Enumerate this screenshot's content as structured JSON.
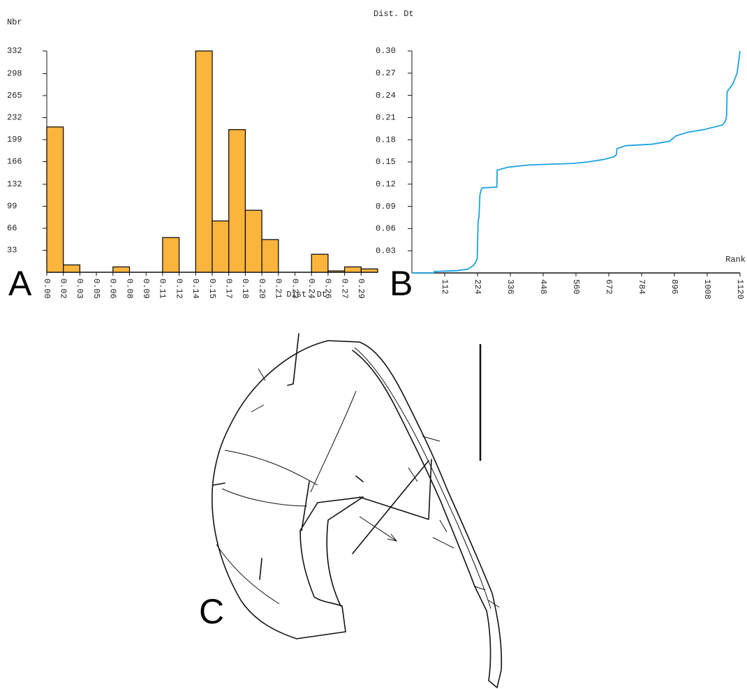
{
  "chart_data": [
    {
      "type": "histogram",
      "panel_label": "A",
      "y_label": "Nbr",
      "x_label": "Dist. Dt",
      "bins": [
        0,
        0.015,
        0.03,
        0.045,
        0.06,
        0.075,
        0.09,
        0.105,
        0.12,
        0.135,
        0.15,
        0.165,
        0.18,
        0.195,
        0.21,
        0.225,
        0.24,
        0.255,
        0.27,
        0.285,
        0.3
      ],
      "values": [
        218,
        11,
        0,
        0,
        8,
        0,
        0,
        52,
        0,
        332,
        77,
        214,
        93,
        49,
        0,
        0,
        27,
        2,
        8,
        5
      ],
      "color": "#fbb43c",
      "xlim": [
        0,
        0.3
      ],
      "ylim": [
        0,
        332
      ],
      "yticks": [
        33,
        66,
        99,
        132,
        166,
        199,
        232,
        265,
        298,
        332
      ],
      "xticks": [
        {
          "value": 0,
          "label": "0.00"
        },
        {
          "value": 0.015,
          "label": "0.02"
        },
        0.03,
        {
          "value": 0.045,
          "label": "0.05"
        },
        0.06,
        {
          "value": 0.075,
          "label": "0.08"
        },
        0.09,
        {
          "value": 0.105,
          "label": "0.11"
        },
        0.12,
        {
          "value": 0.135,
          "label": "0.14"
        },
        0.15,
        {
          "value": 0.165,
          "label": "0.17"
        },
        0.18,
        {
          "value": 0.195,
          "label": "0.20"
        },
        0.21,
        {
          "value": 0.225,
          "label": "0.23"
        },
        0.24,
        {
          "value": 0.255,
          "label": "0.26"
        },
        0.27,
        {
          "value": 0.285,
          "label": "0.29"
        }
      ]
    },
    {
      "type": "line",
      "panel_label": "B",
      "y_label": "Dist. Dt",
      "x_label": "Rank",
      "color": "#1aa3e0",
      "xlim": [
        0,
        1120
      ],
      "ylim": [
        0,
        0.3
      ],
      "xticks": [
        112,
        224,
        336,
        448,
        560,
        672,
        784,
        896,
        1008,
        1120
      ],
      "yticks": [
        0.03,
        0.06,
        0.09,
        0.12,
        0.15,
        0.18,
        0.21,
        0.24,
        0.27,
        {
          "value": 0.3,
          "label": "0.30"
        }
      ],
      "x": [
        0,
        75,
        76,
        150,
        190,
        210,
        220,
        223,
        226,
        229,
        232,
        236,
        240,
        290,
        291,
        330,
        400,
        550,
        600,
        650,
        690,
        698,
        700,
        730,
        820,
        880,
        900,
        940,
        1000,
        1060,
        1070,
        1074,
        1076,
        1095,
        1110,
        1115,
        1120
      ],
      "y": [
        0,
        0,
        0.002,
        0.003,
        0.005,
        0.01,
        0.016,
        0.02,
        0.07,
        0.075,
        0.105,
        0.112,
        0.115,
        0.116,
        0.139,
        0.143,
        0.146,
        0.148,
        0.15,
        0.153,
        0.157,
        0.16,
        0.168,
        0.172,
        0.174,
        0.178,
        0.185,
        0.19,
        0.194,
        0.2,
        0.205,
        0.212,
        0.245,
        0.255,
        0.27,
        0.285,
        0.3
      ]
    }
  ],
  "drawing": {
    "panel_label": "C"
  }
}
